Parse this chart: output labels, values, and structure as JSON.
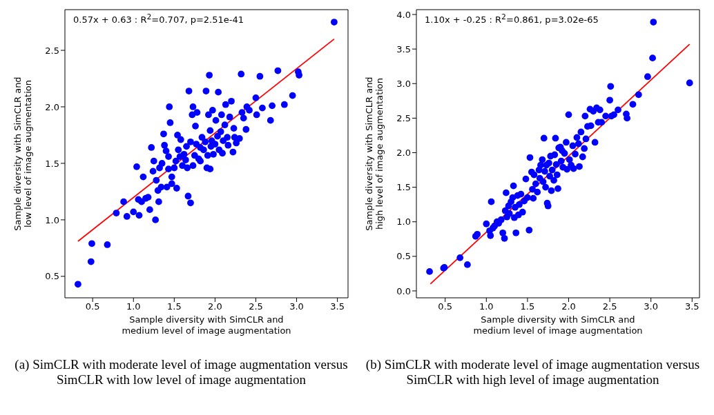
{
  "chart_data": [
    {
      "type": "scatter",
      "xlabel": "Sample diversity with SimCLR and\nmedium level of image augmentation",
      "ylabel": "Sample diversity with SimCLR and\nlow level of image augmentation",
      "annotations": [
        "0.57x + 0.63 : R$^{2}$=0.707, p=2.51e-41",
        "(a) SimCLR with moderate level of image augmentation versus SimCLR with low level of image augmentation"
      ],
      "xlim": [
        0.16,
        3.63
      ],
      "ylim": [
        0.31,
        2.86
      ],
      "xticks": [
        0.5,
        {
          "value": 1,
          "label": "1.0"
        },
        1.5,
        {
          "value": 2,
          "label": "2.0"
        },
        2.5,
        {
          "value": 3,
          "label": "3.0"
        },
        3.5
      ],
      "yticks": [
        0.5,
        {
          "value": 1,
          "label": "1.0"
        },
        1.5,
        {
          "value": 2,
          "label": "2.0"
        },
        2.5
      ],
      "series": [
        {
          "type": "scatter",
          "marker": "circle",
          "color": "#0000ff",
          "x": [
            0.32,
            0.48,
            0.49,
            0.68,
            0.79,
            0.88,
            0.92,
            1.0,
            1.04,
            1.06,
            1.07,
            1.1,
            1.12,
            1.15,
            1.18,
            1.2,
            1.22,
            1.24,
            1.25,
            1.27,
            1.28,
            1.3,
            1.31,
            1.32,
            1.34,
            1.35,
            1.37,
            1.38,
            1.4,
            1.41,
            1.43,
            1.43,
            1.44,
            1.45,
            1.47,
            1.47,
            1.5,
            1.52,
            1.53,
            1.54,
            1.55,
            1.57,
            1.58,
            1.6,
            1.62,
            1.64,
            1.65,
            1.66,
            1.67,
            1.68,
            1.7,
            1.7,
            1.72,
            1.73,
            1.73,
            1.75,
            1.76,
            1.77,
            1.78,
            1.8,
            1.82,
            1.82,
            1.84,
            1.86,
            1.88,
            1.89,
            1.9,
            1.91,
            1.92,
            1.93,
            1.94,
            1.94,
            1.95,
            1.96,
            1.97,
            1.98,
            2.0,
            2.01,
            2.03,
            2.04,
            2.05,
            2.07,
            2.08,
            2.09,
            2.1,
            2.12,
            2.13,
            2.15,
            2.16,
            2.18,
            2.2,
            2.22,
            2.23,
            2.24,
            2.26,
            2.3,
            2.32,
            2.33,
            2.35,
            2.38,
            2.39,
            2.42,
            2.5,
            2.51,
            2.55,
            2.58,
            2.68,
            2.7,
            2.77,
            2.85,
            2.95,
            3.02,
            3.03,
            3.46
          ],
          "values": [
            0.43,
            0.63,
            0.79,
            0.78,
            1.06,
            1.16,
            1.03,
            1.07,
            1.47,
            1.18,
            1.04,
            1.16,
            1.38,
            1.19,
            1.2,
            1.09,
            1.64,
            1.43,
            1.52,
            1.0,
            1.35,
            1.26,
            1.16,
            1.46,
            1.29,
            1.5,
            1.76,
            1.66,
            1.61,
            1.29,
            1.56,
            1.45,
            2.0,
            1.86,
            1.38,
            1.32,
            1.46,
            1.52,
            1.28,
            1.75,
            1.62,
            1.56,
            1.71,
            1.48,
            1.58,
            1.53,
            1.65,
            1.46,
            1.21,
            2.14,
            1.15,
            1.69,
            1.93,
            2.0,
            1.48,
            1.57,
            1.83,
            1.67,
            1.95,
            1.54,
            1.64,
            1.52,
            1.73,
            1.62,
            1.69,
            2.14,
            1.46,
            1.57,
            1.93,
            2.28,
            1.79,
            1.45,
            1.65,
            1.7,
            1.97,
            1.58,
            1.67,
            1.88,
            1.74,
            2.13,
            1.62,
            1.78,
            1.93,
            1.59,
            1.7,
            1.84,
            2.02,
            1.73,
            1.66,
            1.91,
            2.05,
            1.6,
            1.81,
            1.73,
            1.68,
            1.72,
            2.29,
            1.95,
            1.9,
            1.8,
            2.0,
            1.97,
            2.08,
            1.93,
            2.27,
            1.99,
            1.88,
            2.01,
            2.32,
            2.02,
            2.1,
            2.31,
            2.28,
            2.75
          ]
        },
        {
          "type": "line",
          "color": "#ff0000",
          "x": [
            0.32,
            3.46
          ],
          "values": [
            0.81,
            2.6
          ]
        }
      ]
    },
    {
      "type": "scatter",
      "xlabel": "Sample diversity with SimCLR and\nmedium level of image augmentation",
      "ylabel": "Sample diversity with SimCLR and\nhigh level of image augmentation",
      "annotations": [
        "1.10x + -0.25 : R$^{2}$=0.861, p=3.02e-65",
        "(b) SimCLR with moderate level of image augmentation versus SimCLR with high level of image augmentation"
      ],
      "xlim": [
        0.15,
        3.59
      ],
      "ylim": [
        -0.1,
        4.07
      ],
      "xticks": [
        0.5,
        {
          "value": 1,
          "label": "1.0"
        },
        1.5,
        {
          "value": 2,
          "label": "2.0"
        },
        2.5,
        {
          "value": 3,
          "label": "3.0"
        },
        3.5
      ],
      "yticks": [
        {
          "value": 0,
          "label": "0.0"
        },
        0.5,
        {
          "value": 1,
          "label": "1.0"
        },
        1.5,
        {
          "value": 2,
          "label": "2.0"
        },
        2.5,
        {
          "value": 3,
          "label": "3.0"
        },
        3.5,
        {
          "value": 4,
          "label": "4.0"
        }
      ],
      "series": [
        {
          "type": "scatter",
          "marker": "circle",
          "color": "#0000ff",
          "x": [
            0.31,
            0.48,
            0.49,
            0.68,
            0.77,
            0.87,
            0.89,
            1.0,
            1.04,
            1.05,
            1.06,
            1.08,
            1.1,
            1.13,
            1.15,
            1.18,
            1.2,
            1.22,
            1.23,
            1.24,
            1.25,
            1.27,
            1.28,
            1.3,
            1.32,
            1.33,
            1.34,
            1.35,
            1.36,
            1.38,
            1.39,
            1.4,
            1.42,
            1.44,
            1.46,
            1.48,
            1.5,
            1.52,
            1.53,
            1.55,
            1.56,
            1.57,
            1.58,
            1.6,
            1.62,
            1.64,
            1.65,
            1.66,
            1.68,
            1.69,
            1.7,
            1.71,
            1.72,
            1.73,
            1.74,
            1.75,
            1.76,
            1.77,
            1.78,
            1.79,
            1.8,
            1.82,
            1.83,
            1.84,
            1.85,
            1.86,
            1.87,
            1.88,
            1.9,
            1.91,
            1.92,
            1.93,
            1.95,
            1.97,
            1.98,
            2.0,
            2.01,
            2.03,
            2.05,
            2.06,
            2.08,
            2.1,
            2.12,
            2.13,
            2.15,
            2.17,
            2.19,
            2.2,
            2.21,
            2.23,
            2.26,
            2.27,
            2.3,
            2.32,
            2.34,
            2.36,
            2.38,
            2.4,
            2.45,
            2.5,
            2.51,
            2.52,
            2.55,
            2.6,
            2.7,
            2.71,
            2.78,
            2.85,
            2.96,
            3.02,
            3.03,
            3.47
          ],
          "values": [
            0.28,
            0.33,
            0.34,
            0.48,
            0.38,
            0.79,
            0.82,
            0.97,
            0.87,
            0.8,
            1.29,
            0.91,
            0.94,
            1.0,
            0.98,
            1.03,
            0.84,
            0.76,
            1.16,
            1.42,
            1.07,
            1.23,
            1.12,
            1.29,
            1.35,
            1.52,
            1.06,
            1.21,
            0.84,
            1.38,
            1.1,
            1.25,
            1.4,
            1.14,
            1.3,
            1.62,
            1.35,
            0.88,
            1.93,
            1.72,
            1.47,
            1.34,
            1.68,
            1.55,
            1.43,
            1.75,
            1.63,
            1.82,
            1.9,
            1.58,
            2.21,
            1.73,
            1.5,
            1.82,
            1.27,
            1.23,
            1.85,
            1.66,
            1.95,
            1.45,
            1.75,
            1.6,
            1.97,
            2.21,
            1.83,
            1.68,
            1.48,
            2.07,
            2.08,
            1.88,
            2.03,
            1.79,
            1.99,
            2.15,
            1.76,
            2.55,
            1.9,
            1.82,
            2.1,
            1.77,
            1.98,
            2.22,
            2.13,
            1.8,
            2.3,
            1.94,
            2.06,
            2.53,
            2.2,
            2.38,
            2.63,
            2.39,
            2.6,
            2.15,
            2.65,
            2.44,
            2.62,
            2.44,
            2.53,
            2.76,
            2.96,
            2.53,
            2.55,
            2.62,
            2.56,
            2.5,
            2.7,
            2.84,
            3.1,
            3.37,
            3.89,
            3.01
          ]
        },
        {
          "type": "line",
          "color": "#ff0000",
          "x": [
            0.32,
            3.47
          ],
          "values": [
            0.1,
            3.57
          ]
        }
      ]
    }
  ]
}
